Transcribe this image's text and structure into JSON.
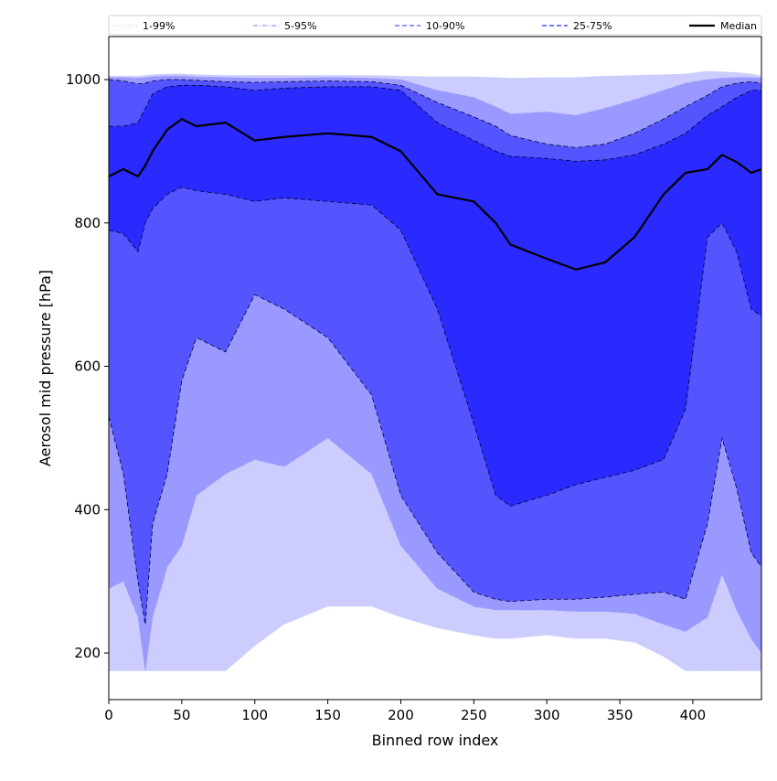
{
  "chart_data": {
    "type": "area",
    "title": "",
    "xlabel": "Binned row index",
    "ylabel": "Aerosol mid pressure [hPa]",
    "xlim": [
      0,
      447
    ],
    "ylim": [
      135,
      1060
    ],
    "xticks": [
      0,
      50,
      100,
      150,
      200,
      250,
      300,
      350,
      400
    ],
    "yticks": [
      200,
      400,
      600,
      800,
      1000
    ],
    "grid": false,
    "legend_position": "top, spanning full width",
    "x": [
      0,
      10,
      20,
      25,
      30,
      40,
      50,
      60,
      80,
      100,
      120,
      150,
      180,
      200,
      225,
      250,
      265,
      275,
      300,
      320,
      340,
      360,
      380,
      395,
      410,
      420,
      430,
      440,
      447
    ],
    "series": [
      {
        "name": "1-99%",
        "color": "#ccccff",
        "style": "dotted",
        "lower": [
          175,
          175,
          175,
          175,
          175,
          175,
          175,
          175,
          175,
          210,
          240,
          265,
          265,
          250,
          235,
          225,
          220,
          220,
          225,
          220,
          220,
          215,
          195,
          175,
          175,
          175,
          175,
          175,
          175
        ],
        "upper": [
          1005,
          1005,
          1005,
          1006,
          1007,
          1008,
          1008,
          1007,
          1006,
          1006,
          1006,
          1006,
          1006,
          1005,
          1004,
          1004,
          1003,
          1002,
          1003,
          1003,
          1005,
          1006,
          1007,
          1008,
          1012,
          1011,
          1010,
          1008,
          1005
        ]
      },
      {
        "name": "5-95%",
        "color": "#9999ff",
        "style": "dashdot",
        "lower": [
          290,
          300,
          250,
          175,
          250,
          320,
          350,
          420,
          450,
          470,
          460,
          500,
          450,
          350,
          290,
          265,
          260,
          260,
          260,
          258,
          258,
          255,
          240,
          230,
          250,
          310,
          260,
          220,
          200
        ],
        "upper": [
          1003,
          1003,
          1002,
          1003,
          1004,
          1005,
          1005,
          1004,
          1003,
          1002,
          1002,
          1003,
          1002,
          1000,
          985,
          975,
          962,
          952,
          955,
          950,
          960,
          972,
          985,
          995,
          1000,
          1002,
          1003,
          1003,
          1002
        ]
      },
      {
        "name": "10-90%",
        "color": "#5555ff",
        "style": "dashed",
        "lower": [
          530,
          450,
          300,
          240,
          380,
          450,
          580,
          640,
          620,
          700,
          680,
          640,
          560,
          420,
          340,
          285,
          275,
          272,
          275,
          275,
          278,
          282,
          285,
          275,
          380,
          500,
          430,
          340,
          320
        ],
        "upper": [
          1000,
          998,
          994,
          995,
          998,
          1000,
          1000,
          999,
          997,
          996,
          997,
          998,
          997,
          992,
          968,
          948,
          935,
          922,
          910,
          905,
          910,
          925,
          945,
          962,
          978,
          990,
          995,
          997,
          995
        ]
      },
      {
        "name": "25-75%",
        "color": "#2a2aff",
        "style": "dashed",
        "lower": [
          790,
          785,
          760,
          800,
          820,
          840,
          850,
          845,
          840,
          830,
          835,
          830,
          825,
          790,
          680,
          520,
          420,
          405,
          420,
          435,
          445,
          455,
          470,
          540,
          780,
          800,
          760,
          680,
          670
        ],
        "upper": [
          935,
          935,
          940,
          960,
          980,
          990,
          992,
          992,
          990,
          985,
          988,
          990,
          990,
          985,
          940,
          915,
          900,
          893,
          890,
          886,
          888,
          895,
          910,
          925,
          950,
          962,
          975,
          985,
          985
        ]
      },
      {
        "name": "Median",
        "color": "#000000",
        "style": "solid",
        "values": [
          865,
          875,
          865,
          880,
          900,
          930,
          945,
          935,
          940,
          915,
          920,
          925,
          920,
          900,
          840,
          830,
          800,
          770,
          750,
          735,
          745,
          780,
          840,
          870,
          875,
          895,
          885,
          870,
          875
        ]
      }
    ]
  }
}
